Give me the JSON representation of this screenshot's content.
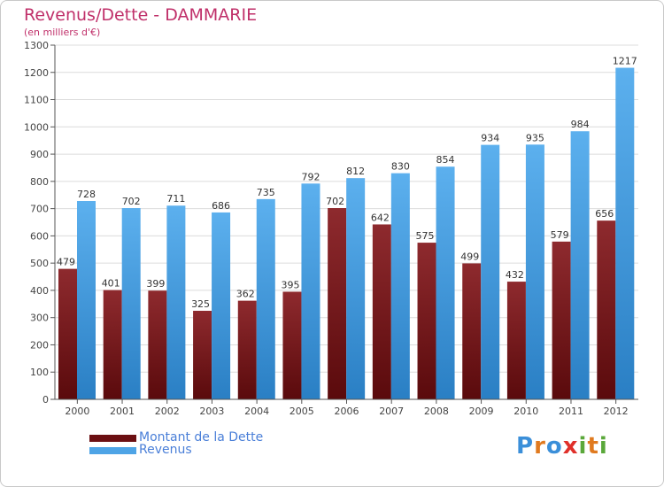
{
  "header": {
    "title": "Revenus/Dette - DAMMARIE",
    "subtitle": "(en milliers d'€)"
  },
  "chart_data": {
    "type": "bar",
    "categories": [
      "2000",
      "2001",
      "2002",
      "2003",
      "2004",
      "2005",
      "2006",
      "2007",
      "2008",
      "2009",
      "2010",
      "2011",
      "2012"
    ],
    "series": [
      {
        "name": "Montant de la Dette",
        "values": [
          479,
          401,
          399,
          325,
          362,
          395,
          702,
          642,
          575,
          499,
          432,
          579,
          656
        ],
        "color": "#7a1e22"
      },
      {
        "name": "Revenus",
        "values": [
          728,
          702,
          711,
          686,
          735,
          792,
          812,
          830,
          854,
          934,
          935,
          984,
          1217
        ],
        "color": "#4ea4e6"
      }
    ],
    "yticks": [
      0,
      100,
      200,
      300,
      400,
      500,
      600,
      700,
      800,
      900,
      1000,
      1100,
      1200,
      1300
    ],
    "ylim": [
      0,
      1300
    ],
    "grid": "horizontal",
    "legend_position": "bottom-left"
  },
  "legend": {
    "items": [
      {
        "label": "Montant de la Dette",
        "color": "#6b0f12"
      },
      {
        "label": "Revenus",
        "color": "#4ea4e6"
      }
    ]
  },
  "logo": {
    "letters": [
      "P",
      "r",
      "o",
      "x",
      "i",
      "t",
      "i"
    ],
    "colors": [
      "#3b8fd9",
      "#e07a1f",
      "#3b8fd9",
      "#e0302a",
      "#5aa83a",
      "#e07a1f",
      "#5aa83a"
    ]
  }
}
